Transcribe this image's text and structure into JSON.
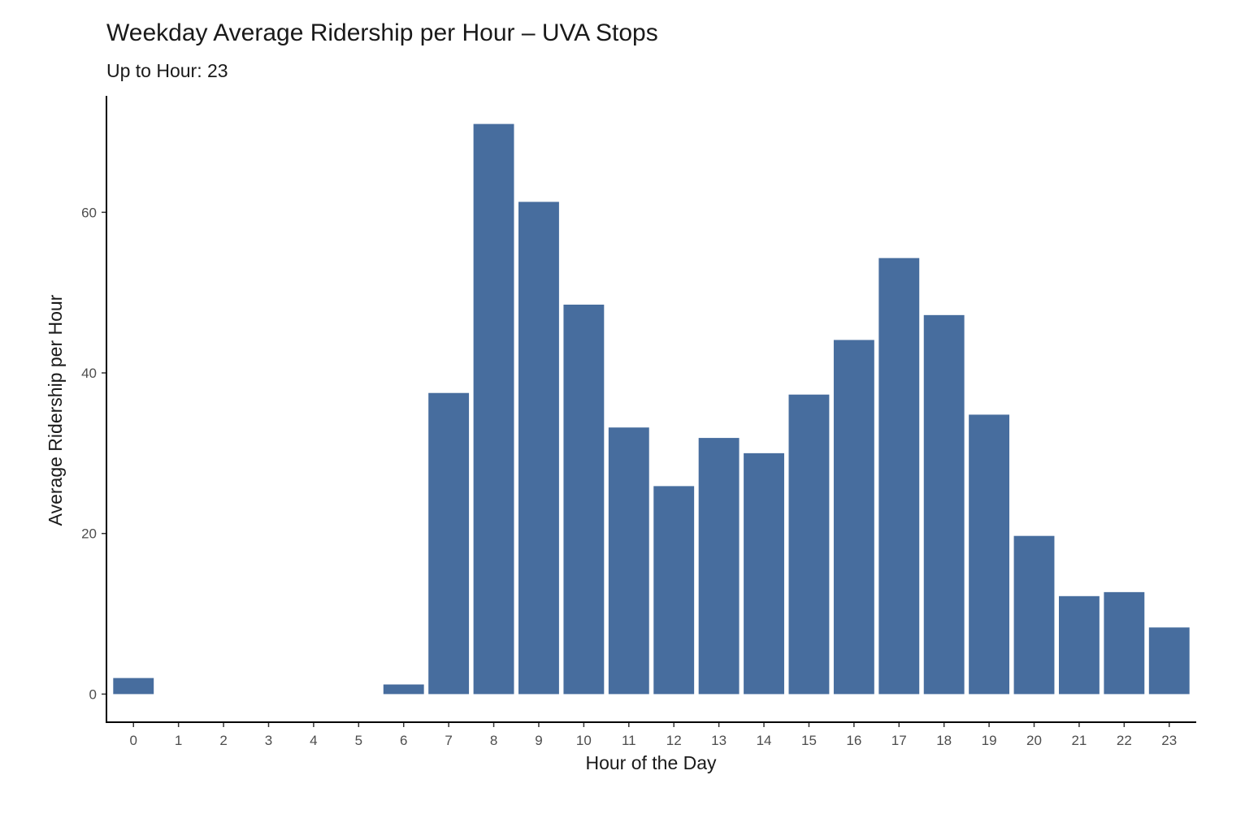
{
  "chart_data": {
    "type": "bar",
    "title": "Weekday Average Ridership per Hour – UVA Stops",
    "subtitle": "Up to Hour: 23",
    "xlabel": "Hour of the Day",
    "ylabel": "Average Ridership per Hour",
    "categories": [
      "0",
      "1",
      "2",
      "3",
      "4",
      "5",
      "6",
      "7",
      "8",
      "9",
      "10",
      "11",
      "12",
      "13",
      "14",
      "15",
      "16",
      "17",
      "18",
      "19",
      "20",
      "21",
      "22",
      "23"
    ],
    "values": [
      2.0,
      0,
      0,
      0,
      0,
      0,
      1.2,
      37.5,
      71.0,
      61.3,
      48.5,
      33.2,
      25.9,
      31.9,
      30.0,
      37.3,
      44.1,
      54.3,
      47.2,
      34.8,
      19.7,
      12.2,
      12.7,
      8.3
    ],
    "yticks": [
      0,
      20,
      40,
      60
    ],
    "ylim": [
      -3.5,
      74.5
    ],
    "bar_color": "#476d9e",
    "grid": false,
    "legend": "none"
  }
}
